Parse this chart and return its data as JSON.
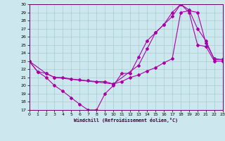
{
  "title": "",
  "xlabel": "Windchill (Refroidissement éolien,°C)",
  "bg_color": "#cce8ee",
  "line_color": "#aa00aa",
  "grid_color": "#aaccd0",
  "x_min": 0,
  "x_max": 23,
  "y_min": 17,
  "y_max": 30,
  "line1_x": [
    0,
    1,
    2,
    3,
    4,
    5,
    6,
    7,
    8,
    9,
    10,
    11,
    12,
    13,
    14,
    15,
    16,
    17,
    18,
    19,
    20,
    21,
    22,
    23
  ],
  "line1_y": [
    23,
    21.7,
    21.0,
    20.0,
    19.3,
    18.5,
    17.7,
    17.0,
    17.0,
    19.0,
    20.0,
    21.5,
    21.5,
    23.5,
    25.5,
    26.5,
    27.5,
    28.5,
    30.0,
    29.0,
    25.0,
    24.8,
    23.0,
    23.0
  ],
  "line2_x": [
    0,
    1,
    2,
    3,
    4,
    5,
    6,
    7,
    8,
    9,
    10,
    11,
    12,
    13,
    14,
    15,
    16,
    17,
    18,
    19,
    20,
    21,
    22,
    23
  ],
  "line2_y": [
    23,
    21.7,
    21.5,
    21.0,
    21.0,
    20.8,
    20.7,
    20.6,
    20.5,
    20.5,
    20.2,
    20.5,
    21.0,
    21.3,
    21.8,
    22.2,
    22.8,
    23.3,
    29.0,
    29.2,
    29.0,
    25.2,
    23.3,
    23.2
  ],
  "line3_x": [
    0,
    2,
    3,
    10,
    13,
    14,
    15,
    16,
    17,
    18,
    19,
    20,
    21,
    22,
    23
  ],
  "line3_y": [
    23,
    21.5,
    21.0,
    20.2,
    22.5,
    24.5,
    26.5,
    27.5,
    29.0,
    30.0,
    29.3,
    27.0,
    25.5,
    23.2,
    23.2
  ]
}
